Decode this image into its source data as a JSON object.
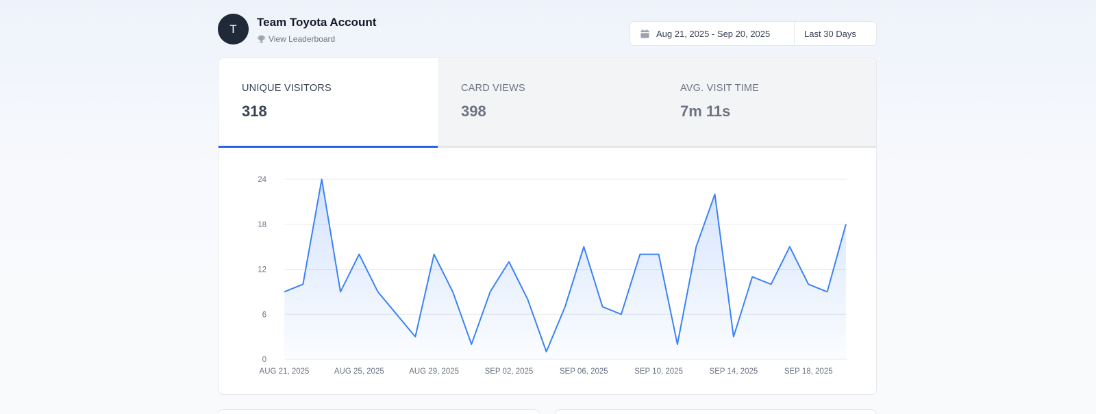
{
  "header": {
    "avatar_initial": "T",
    "account_name": "Team Toyota Account",
    "leaderboard_label": "View Leaderboard",
    "date_range": "Aug 21, 2025 - Sep 20, 2025",
    "preset_label": "Last 30 Days"
  },
  "tabs": [
    {
      "label": "UNIQUE VISITORS",
      "value": "318",
      "active": true
    },
    {
      "label": "CARD VIEWS",
      "value": "398",
      "active": false
    },
    {
      "label": "AVG. VISIT TIME",
      "value": "7m 11s",
      "active": false
    }
  ],
  "colors": {
    "accent": "#2563eb",
    "line": "#3b82f6",
    "avatar_bg": "#1f2937"
  },
  "icons": {
    "leaderboard": "trophy-icon",
    "date": "calendar-icon"
  },
  "chart_data": {
    "type": "area",
    "x": [
      "AUG 21, 2025",
      "AUG 22, 2025",
      "AUG 23, 2025",
      "AUG 24, 2025",
      "AUG 25, 2025",
      "AUG 26, 2025",
      "AUG 27, 2025",
      "AUG 28, 2025",
      "AUG 29, 2025",
      "AUG 30, 2025",
      "AUG 31, 2025",
      "SEP 01, 2025",
      "SEP 02, 2025",
      "SEP 03, 2025",
      "SEP 04, 2025",
      "SEP 05, 2025",
      "SEP 06, 2025",
      "SEP 07, 2025",
      "SEP 08, 2025",
      "SEP 09, 2025",
      "SEP 10, 2025",
      "SEP 11, 2025",
      "SEP 12, 2025",
      "SEP 13, 2025",
      "SEP 14, 2025",
      "SEP 15, 2025",
      "SEP 16, 2025",
      "SEP 17, 2025",
      "SEP 18, 2025",
      "SEP 19, 2025",
      "SEP 20, 2025"
    ],
    "x_tick_labels": [
      "AUG 21, 2025",
      "AUG 25, 2025",
      "AUG 29, 2025",
      "SEP 02, 2025",
      "SEP 06, 2025",
      "SEP 10, 2025",
      "SEP 14, 2025",
      "SEP 18, 2025"
    ],
    "series": [
      {
        "values": [
          9,
          10,
          24,
          9,
          14,
          9,
          6,
          3,
          14,
          9,
          2,
          9,
          13,
          8,
          1,
          7,
          15,
          7,
          6,
          14,
          14,
          2,
          15,
          22,
          3,
          11,
          10,
          15,
          10,
          9,
          18
        ]
      }
    ],
    "ylim": [
      0,
      24
    ],
    "y_ticks": [
      0,
      6,
      12,
      18,
      24
    ],
    "grid": true
  }
}
